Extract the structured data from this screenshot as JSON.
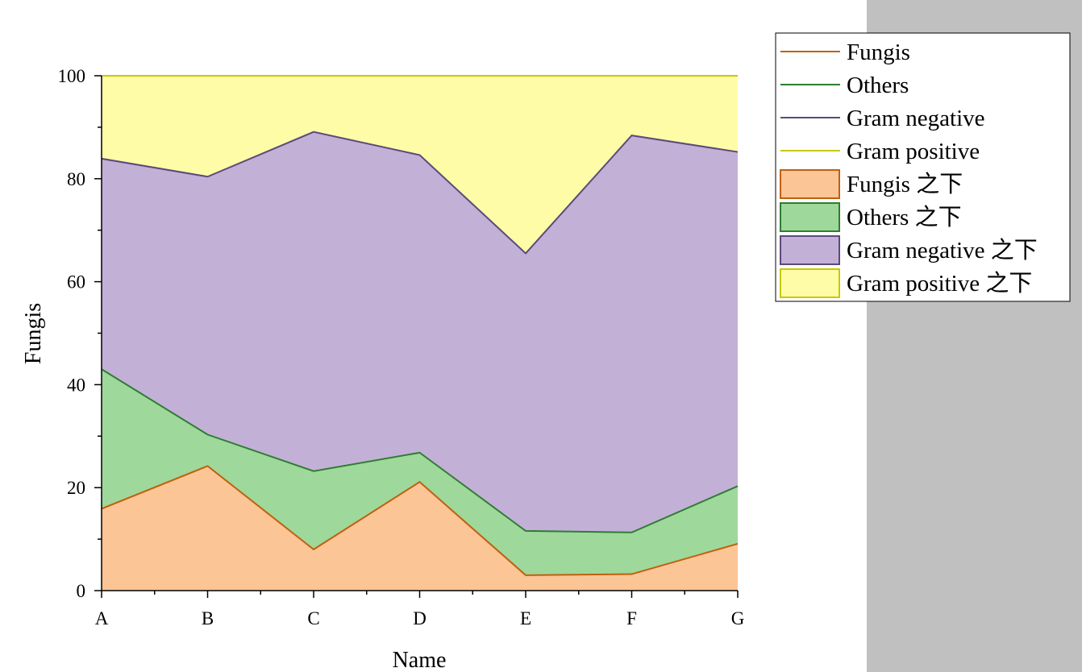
{
  "chart_data": {
    "type": "area",
    "stacked": true,
    "categories": [
      "A",
      "B",
      "C",
      "D",
      "E",
      "F",
      "G"
    ],
    "xlabel": "Name",
    "ylabel": "Fungis",
    "ylim": [
      0,
      100
    ],
    "yticks": [
      "0",
      "20",
      "40",
      "60",
      "80",
      "100"
    ],
    "series": [
      {
        "name": "Fungis",
        "line_color": "#c0600f",
        "fill_color": "#fbc596",
        "values": [
          15.9,
          24.2,
          8.0,
          21.1,
          3.0,
          3.2,
          9.1
        ]
      },
      {
        "name": "Others",
        "line_color": "#2e7d32",
        "fill_color": "#9fd89b",
        "values": [
          27.1,
          6.1,
          15.2,
          5.7,
          8.6,
          8.1,
          11.2
        ]
      },
      {
        "name": "Gram negative",
        "line_color": "#5a4a7a",
        "fill_color": "#c3b0d7",
        "values": [
          40.9,
          50.1,
          65.9,
          57.8,
          53.9,
          77.1,
          64.9
        ]
      },
      {
        "name": "Gram positive",
        "line_color": "#c8c800",
        "fill_color": "#fffca8",
        "values": [
          16.1,
          19.6,
          10.9,
          15.4,
          34.5,
          11.6,
          14.8
        ]
      }
    ],
    "legend": {
      "position": "top-right",
      "line_entries": [
        "Fungis",
        "Others",
        "Gram negative",
        "Gram positive"
      ],
      "fill_entries": [
        "Fungis 之下",
        "Others 之下",
        "Gram negative 之下",
        "Gram positive 之下"
      ]
    }
  }
}
